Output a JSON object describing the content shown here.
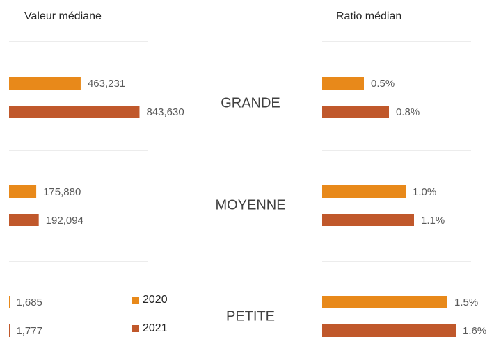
{
  "chart_data": [
    {
      "type": "hbar",
      "title": "Valeur médiane",
      "categories": [
        "GRANDE",
        "MOYENNE",
        "PETITE"
      ],
      "series": [
        {
          "name": "2020",
          "color": "#e8891a",
          "values": [
            463231,
            175880,
            1685
          ],
          "value_labels": [
            "463,231",
            "175,880",
            "1,685"
          ]
        },
        {
          "name": "2021",
          "color": "#c0582b",
          "values": [
            843630,
            192094,
            1777
          ],
          "value_labels": [
            "843,630",
            "192,094",
            "1,777"
          ]
        }
      ],
      "xlim": [
        0,
        900000
      ],
      "legend": "bottom-right"
    },
    {
      "type": "hbar",
      "title": "Ratio médian",
      "categories": [
        "GRANDE",
        "MOYENNE",
        "PETITE"
      ],
      "series": [
        {
          "name": "2020",
          "color": "#e8891a",
          "values": [
            0.5,
            1.0,
            1.5
          ],
          "value_labels": [
            "0.5%",
            "1.0%",
            "1.5%"
          ]
        },
        {
          "name": "2021",
          "color": "#c0582b",
          "values": [
            0.8,
            1.1,
            1.6
          ],
          "value_labels": [
            "0.8%",
            "1.1%",
            "1.6%"
          ]
        }
      ],
      "xlim": [
        0,
        2
      ]
    }
  ]
}
